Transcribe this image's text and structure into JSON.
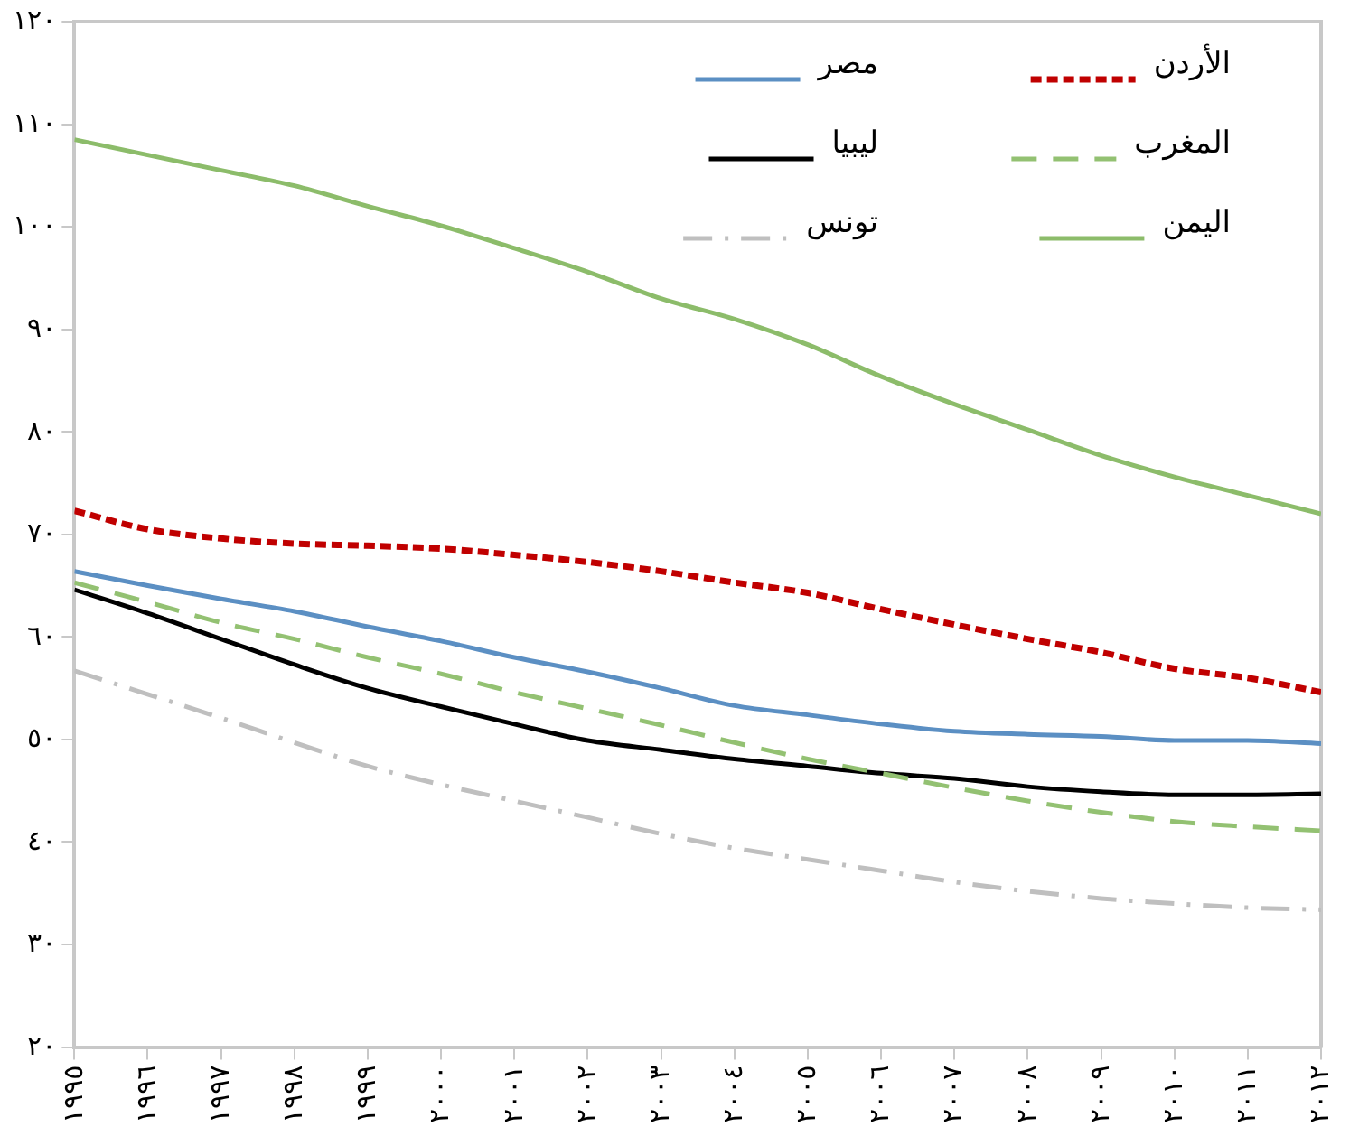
{
  "chart_data": {
    "type": "line",
    "x": [
      1995,
      1996,
      1997,
      1998,
      1999,
      2000,
      2001,
      2002,
      2003,
      2004,
      2005,
      2006,
      2007,
      2008,
      2009,
      2010,
      2011,
      2012
    ],
    "xlim": [
      1995,
      2012
    ],
    "xticks": [
      {
        "value": 1995,
        "label": "١٩٩٥"
      },
      {
        "value": 1996,
        "label": "١٩٩٦"
      },
      {
        "value": 1997,
        "label": "١٩٩٧"
      },
      {
        "value": 1998,
        "label": "١٩٩٨"
      },
      {
        "value": 1999,
        "label": "١٩٩٩"
      },
      {
        "value": 2000,
        "label": "٢٠٠٠"
      },
      {
        "value": 2001,
        "label": "٢٠٠١"
      },
      {
        "value": 2002,
        "label": "٢٠٠٢"
      },
      {
        "value": 2003,
        "label": "٢٠٠٣"
      },
      {
        "value": 2004,
        "label": "٢٠٠٤"
      },
      {
        "value": 2005,
        "label": "٢٠٠٥"
      },
      {
        "value": 2006,
        "label": "٢٠٠٦"
      },
      {
        "value": 2007,
        "label": "٢٠٠٧"
      },
      {
        "value": 2008,
        "label": "٢٠٠٨"
      },
      {
        "value": 2009,
        "label": "٢٠٠٩"
      },
      {
        "value": 2010,
        "label": "٢٠١٠"
      },
      {
        "value": 2011,
        "label": "٢٠١١"
      },
      {
        "value": 2012,
        "label": "٢٠١٢"
      }
    ],
    "ylim": [
      20,
      120
    ],
    "yticks": [
      {
        "value": 20,
        "label": "٢٠"
      },
      {
        "value": 30,
        "label": "٣٠"
      },
      {
        "value": 40,
        "label": "٤٠"
      },
      {
        "value": 50,
        "label": "٥٠"
      },
      {
        "value": 60,
        "label": "٦٠"
      },
      {
        "value": 70,
        "label": "٧٠"
      },
      {
        "value": 80,
        "label": "٨٠"
      },
      {
        "value": 90,
        "label": "٩٠"
      },
      {
        "value": 100,
        "label": "١٠٠"
      },
      {
        "value": 110,
        "label": "١١٠"
      },
      {
        "value": 120,
        "label": "١٢٠"
      }
    ],
    "grid": false,
    "legend": "top right",
    "series": [
      {
        "name": "الأردن",
        "color": "#c00000",
        "line_style": "dotted",
        "values": [
          72.3,
          70.5,
          69.6,
          69.1,
          68.9,
          68.6,
          68,
          67.3,
          66.4,
          65.3,
          64.3,
          62.7,
          61.2,
          59.8,
          58.5,
          56.9,
          56,
          54.6
        ]
      },
      {
        "name": "مصر",
        "color": "#5b8fc3",
        "line_style": "solid",
        "values": [
          66.4,
          65,
          63.7,
          62.5,
          61,
          59.6,
          58,
          56.6,
          55,
          53.3,
          52.4,
          51.5,
          50.8,
          50.5,
          50.3,
          49.9,
          49.9,
          49.6
        ]
      },
      {
        "name": "المغرب",
        "color": "#93c172",
        "line_style": "dashed",
        "values": [
          65.3,
          63.4,
          61.4,
          59.8,
          58,
          56.4,
          54.6,
          53,
          51.4,
          49.7,
          48.1,
          46.7,
          45.3,
          44,
          42.9,
          42,
          41.5,
          41.1
        ]
      },
      {
        "name": "ليبيا",
        "color": "#000000",
        "line_style": "solid",
        "values": [
          64.6,
          62.3,
          59.8,
          57.3,
          55,
          53.2,
          51.5,
          49.9,
          49,
          48.1,
          47.4,
          46.7,
          46.2,
          45.4,
          44.9,
          44.6,
          44.6,
          44.7
        ]
      },
      {
        "name": "اليمن",
        "color": "#8cbc6a",
        "line_style": "solid",
        "values": [
          108.5,
          107,
          105.5,
          104,
          102,
          100.1,
          97.9,
          95.6,
          93,
          91,
          88.5,
          85.4,
          82.7,
          80.2,
          77.7,
          75.6,
          73.8,
          72
        ]
      },
      {
        "name": "تونس",
        "color": "#bfbfbf",
        "line_style": "dashdot",
        "values": [
          56.7,
          54.4,
          52.1,
          49.7,
          47.4,
          45.6,
          44,
          42.4,
          40.8,
          39.4,
          38.3,
          37.2,
          36.1,
          35.2,
          34.5,
          34,
          33.6,
          33.4
        ]
      }
    ]
  }
}
